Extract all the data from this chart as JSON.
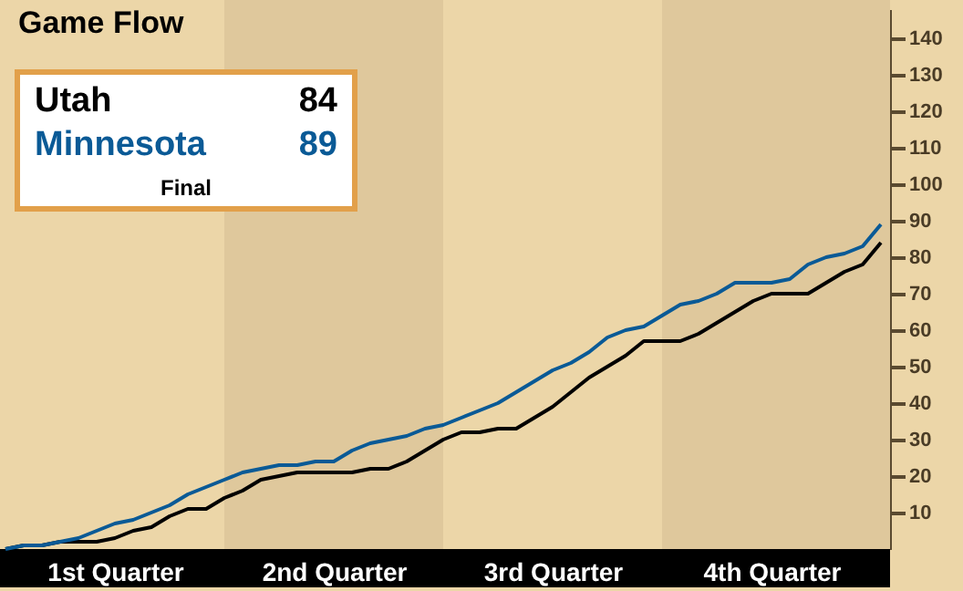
{
  "chart_data": {
    "type": "line",
    "title": "Game Flow",
    "categories": [
      null,
      null,
      null,
      null,
      null,
      null,
      "1st Quarter",
      null,
      null,
      null,
      null,
      null,
      null,
      null,
      null,
      null,
      null,
      null,
      "2nd Quarter",
      null,
      null,
      null,
      null,
      null,
      null,
      null,
      null,
      null,
      null,
      null,
      "3rd Quarter",
      null,
      null,
      null,
      null,
      null,
      null,
      null,
      null,
      null,
      null,
      null,
      "4th Quarter",
      null,
      null,
      null,
      null,
      null,
      null
    ],
    "ylim": [
      0,
      148
    ],
    "yticks": [
      10,
      20,
      30,
      40,
      50,
      60,
      70,
      80,
      90,
      100,
      110,
      120,
      130,
      140
    ],
    "grid": false,
    "legend": "top left",
    "line_style": "solid",
    "marker": "none",
    "series": [
      {
        "name": "Utah",
        "color": "#000000",
        "values": [
          0,
          1,
          1,
          2,
          2,
          2,
          3,
          5,
          6,
          9,
          11,
          11,
          14,
          16,
          19,
          20,
          21,
          21,
          21,
          21,
          22,
          22,
          24,
          27,
          30,
          32,
          32,
          33,
          33,
          36,
          39,
          43,
          47,
          50,
          53,
          57,
          57,
          57,
          59,
          62,
          65,
          68,
          70,
          70,
          70,
          73,
          76,
          78,
          84
        ]
      },
      {
        "name": "Minnesota",
        "color": "#0a5a96",
        "values": [
          0,
          1,
          1,
          2,
          3,
          5,
          7,
          8,
          10,
          12,
          15,
          17,
          19,
          21,
          22,
          23,
          23,
          24,
          24,
          27,
          29,
          30,
          31,
          33,
          34,
          36,
          38,
          40,
          43,
          46,
          49,
          51,
          54,
          58,
          60,
          61,
          64,
          67,
          68,
          70,
          73,
          73,
          73,
          74,
          78,
          80,
          81,
          83,
          89
        ]
      }
    ],
    "annotations": [
      "84",
      "89",
      "Final"
    ]
  }
}
